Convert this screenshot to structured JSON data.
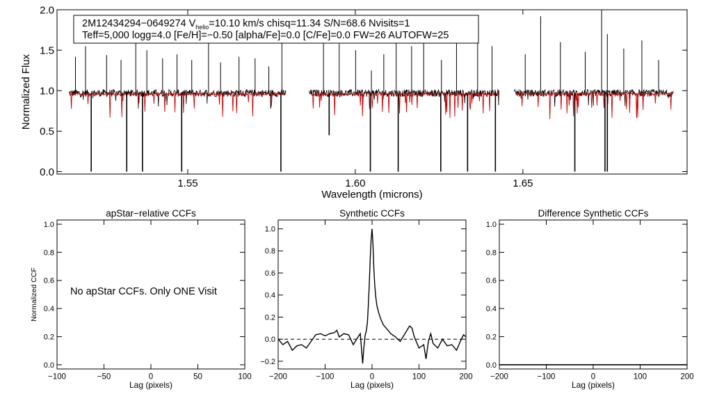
{
  "chart_data": [
    {
      "type": "line",
      "title": "",
      "xlabel": "Wavelength (microns)",
      "ylabel": "Normalized Flux",
      "xlim": [
        1.511,
        1.699
      ],
      "ylim": [
        -0.03,
        2.0
      ],
      "xticks": [
        "1.55",
        "1.60",
        "1.65"
      ],
      "xtick_values": [
        1.55,
        1.6,
        1.65
      ],
      "yticks": [
        "0.0",
        "0.5",
        "1.0",
        "1.5",
        "2.0"
      ],
      "ytick_values": [
        0.0,
        0.5,
        1.0,
        1.5,
        2.0
      ],
      "info_line1_a": "2M12434294−0649274  V",
      "info_line1_sub": "helio",
      "info_line1_b": "=10.10 km/s  chisq=11.34  S/N=68.6  Nvisits=1",
      "info_line2": "Teff=5,000 logg=4.0 [Fe/H]=−0.50 [alpha/Fe]=0.0 [C/Fe]=0.0 FW=26 AUTOFW=25",
      "series": [
        {
          "name": "observed spectrum",
          "color": "#000000",
          "segments": [
            [
              1.5145,
              1.5793
            ],
            [
              1.5862,
              1.643
            ],
            [
              1.6474,
              1.695
            ]
          ],
          "continuum": 0.97,
          "spikes_up": [
            1.5165,
            1.5195,
            1.5258,
            1.5301,
            1.5345,
            1.5378,
            1.5425,
            1.5468,
            1.5512,
            1.5562,
            1.5598,
            1.5653,
            1.5701,
            1.5742,
            1.5781,
            1.5905,
            1.5952,
            1.6001,
            1.6048,
            1.6085,
            1.6122,
            1.6168,
            1.6204,
            1.6257,
            1.6302,
            1.6365,
            1.6408,
            1.6507,
            1.6553,
            1.6612,
            1.6686,
            1.6735,
            1.6752,
            1.6801,
            1.6855,
            1.6905
          ],
          "spikes_up_values": [
            1.42,
            1.55,
            1.44,
            1.38,
            1.6,
            1.5,
            1.4,
            1.45,
            1.38,
            1.62,
            1.35,
            1.42,
            1.4,
            1.3,
            1.65,
            1.78,
            1.58,
            1.5,
            1.25,
            1.45,
            1.85,
            1.55,
            1.62,
            1.38,
            1.78,
            1.82,
            1.55,
            1.45,
            1.92,
            1.6,
            1.48,
            2.0,
            1.7,
            1.52,
            1.62,
            1.38
          ],
          "spikes_down": [
            1.5212,
            1.5318,
            1.5365,
            1.5482,
            1.5778,
            1.5922,
            1.6045,
            1.6128,
            1.6255,
            1.6335,
            1.6418,
            1.6655,
            1.6745,
            1.6752
          ],
          "spikes_down_values": [
            0.0,
            0.0,
            0.0,
            0.0,
            0.0,
            0.45,
            0.0,
            0.0,
            0.0,
            0.0,
            0.0,
            0.0,
            0.0,
            0.0
          ]
        },
        {
          "name": "synthetic model",
          "color": "#cc0000",
          "segments": [
            [
              1.5148,
              1.579
            ],
            [
              1.5868,
              1.6428
            ],
            [
              1.648,
              1.6948
            ]
          ],
          "continuum": 0.96
        }
      ]
    },
    {
      "type": "line",
      "title": "apStar−relative CCFs",
      "xlabel": "Lag (pixels)",
      "ylabel": "Normalized CCF",
      "xlim": [
        -100,
        100
      ],
      "ylim": [
        -0.03,
        1.03
      ],
      "xticks": [
        "−100",
        "−50",
        "0",
        "50",
        "100"
      ],
      "xtick_values": [
        -100,
        -50,
        0,
        50,
        100
      ],
      "yticks": [
        "0.0",
        "0.2",
        "0.4",
        "0.6",
        "0.8",
        "1.0"
      ],
      "ytick_values": [
        0.0,
        0.2,
        0.4,
        0.6,
        0.8,
        1.0
      ],
      "annotation": "No apStar CCFs.  Only ONE Visit",
      "series": []
    },
    {
      "type": "line",
      "title": "Synthetic CCFs",
      "xlabel": "Lag (pixels)",
      "ylabel": "",
      "xlim": [
        -200,
        200
      ],
      "ylim": [
        -0.27,
        1.08
      ],
      "xticks": [
        "−200",
        "−100",
        "0",
        "100",
        "200"
      ],
      "xtick_values": [
        -200,
        -100,
        0,
        100,
        200
      ],
      "yticks": [
        "−0.2",
        "0.0",
        "0.2",
        "0.4",
        "0.6",
        "0.8",
        "1.0"
      ],
      "ytick_values": [
        -0.2,
        0.0,
        0.2,
        0.4,
        0.6,
        0.8,
        1.0
      ],
      "zero_line": "dashed",
      "series": [
        {
          "name": "CCF",
          "color": "#000000",
          "x": [
            -200,
            -190,
            -180,
            -170,
            -160,
            -150,
            -140,
            -130,
            -120,
            -110,
            -100,
            -90,
            -80,
            -75,
            -70,
            -60,
            -50,
            -40,
            -30,
            -25,
            -20,
            -18,
            -15,
            -12,
            -10,
            -8,
            -6,
            -4,
            -2,
            0,
            2,
            4,
            6,
            8,
            10,
            14,
            18,
            24,
            30,
            40,
            50,
            60,
            70,
            80,
            85,
            90,
            100,
            110,
            115,
            120,
            125,
            130,
            140,
            150,
            160,
            170,
            180,
            190,
            195,
            200
          ],
          "y": [
            0.0,
            -0.05,
            -0.02,
            -0.1,
            -0.06,
            -0.05,
            -0.08,
            -0.02,
            0.04,
            0.05,
            0.03,
            0.05,
            0.06,
            0.08,
            0.02,
            0.05,
            0.04,
            -0.05,
            0.02,
            0.05,
            -0.22,
            -0.1,
            0.03,
            0.08,
            0.15,
            0.3,
            0.5,
            0.72,
            0.9,
            1.0,
            0.85,
            0.62,
            0.48,
            0.38,
            0.31,
            0.24,
            0.19,
            0.13,
            0.1,
            0.05,
            0.02,
            -0.02,
            0.05,
            0.12,
            0.1,
            0.02,
            -0.08,
            -0.05,
            -0.18,
            -0.02,
            0.05,
            -0.04,
            -0.08,
            0.0,
            -0.06,
            -0.05,
            -0.1,
            0.0,
            0.04,
            0.02
          ]
        }
      ]
    },
    {
      "type": "line",
      "title": "Difference Synthetic CCFs",
      "xlabel": "Lag (pixels)",
      "ylabel": "",
      "xlim": [
        -200,
        200
      ],
      "ylim": [
        -0.03,
        1.03
      ],
      "xticks": [
        "−200",
        "−100",
        "0",
        "100",
        "200"
      ],
      "xtick_values": [
        -200,
        -100,
        0,
        100,
        200
      ],
      "yticks": [
        "0.0",
        "0.2",
        "0.4",
        "0.6",
        "0.8",
        "1.0"
      ],
      "ytick_values": [
        0.0,
        0.2,
        0.4,
        0.6,
        0.8,
        1.0
      ],
      "series": [
        {
          "name": "difference",
          "color": "#000000",
          "x": [
            -200,
            200
          ],
          "y": [
            0.0,
            0.0
          ]
        }
      ]
    }
  ]
}
